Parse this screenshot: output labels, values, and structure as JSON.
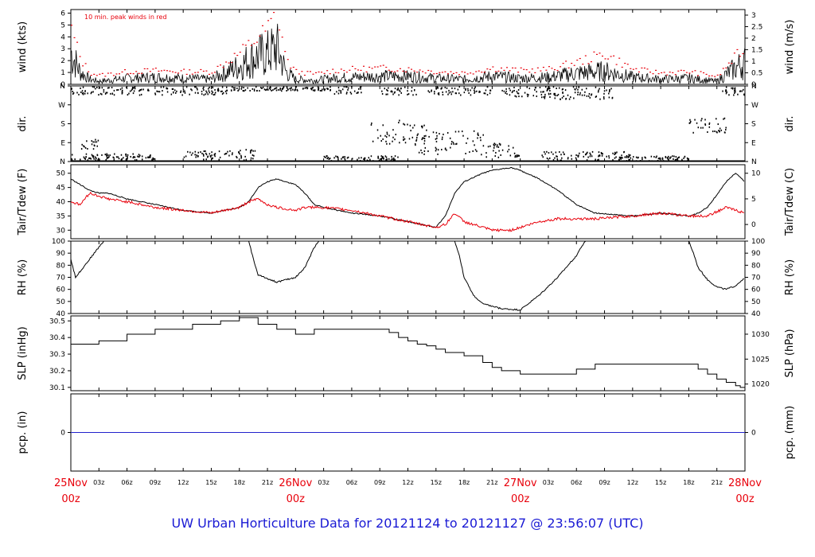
{
  "footer": {
    "prefix": "UW Urban Horticulture Data for",
    "start": "20121124",
    "to": "to",
    "end": "20121127",
    "at": "@",
    "time": "23:56:07",
    "tz": "(UTC)"
  },
  "colors": {
    "black": "#000000",
    "red": "#e8000b",
    "blue": "#2222cc"
  },
  "chart_data": [
    {
      "id": "wind",
      "type": "line",
      "ylabel_left": "wind (kts)",
      "ylabel_right": "wind (m/s)",
      "annotation": "10 min. peak winds in red",
      "ylim": [
        0,
        6.3
      ],
      "left_ticks": [
        "0",
        "1",
        "2",
        "3",
        "4",
        "5",
        "6"
      ],
      "right_ticks": [
        "0",
        "0.5",
        "1",
        "1.5",
        "2",
        "2.5",
        "3"
      ],
      "right_tick_values": [
        0,
        0.97,
        1.94,
        2.92,
        3.89,
        4.86,
        5.83
      ],
      "x_hours": [
        0,
        1,
        2,
        3,
        6,
        9,
        12,
        15,
        18,
        19,
        20,
        21,
        22,
        23,
        24,
        26,
        28,
        30,
        33,
        36,
        39,
        42,
        45,
        48,
        51,
        54,
        57,
        60,
        63,
        66,
        69,
        70,
        72
      ],
      "series": [
        {
          "values": [
            3.2,
            1.2,
            0.5,
            0.3,
            0.6,
            0.7,
            0.6,
            0.5,
            1.8,
            2.4,
            2.8,
            3.0,
            3.6,
            1.2,
            0.5,
            0.4,
            0.6,
            0.7,
            0.8,
            0.8,
            0.6,
            0.5,
            0.8,
            0.6,
            0.7,
            1.1,
            1.3,
            0.7,
            0.5,
            0.6,
            0.3,
            1.0,
            2.2
          ]
        },
        {
          "values": [
            4.6,
            2.1,
            1.0,
            0.8,
            1.1,
            1.2,
            1.1,
            1.1,
            2.7,
            3.4,
            4.0,
            4.8,
            6.1,
            2.0,
            1.1,
            0.9,
            1.2,
            1.3,
            1.4,
            1.3,
            1.1,
            1.0,
            1.4,
            1.2,
            1.3,
            1.9,
            2.6,
            1.3,
            1.0,
            1.1,
            0.7,
            1.6,
            3.2
          ]
        }
      ]
    },
    {
      "id": "dir",
      "type": "scatter",
      "ylabel_left": "dir.",
      "ylabel_right": "dir.",
      "ylim": [
        0,
        360
      ],
      "left_ticks": [
        "N",
        "E",
        "S",
        "W",
        "N"
      ],
      "right_ticks": [
        "N",
        "E",
        "S",
        "W",
        "N"
      ],
      "tick_values": [
        0,
        90,
        180,
        270,
        360
      ],
      "clusters": [
        {
          "x": [
            0,
            5
          ],
          "y": [
            320,
            360
          ]
        },
        {
          "x": [
            0,
            3
          ],
          "y": [
            10,
            40
          ]
        },
        {
          "x": [
            1,
            3
          ],
          "y": [
            60,
            110
          ]
        },
        {
          "x": [
            2,
            9
          ],
          "y": [
            10,
            40
          ]
        },
        {
          "x": [
            5,
            17
          ],
          "y": [
            320,
            360
          ]
        },
        {
          "x": [
            12,
            20
          ],
          "y": [
            10,
            60
          ]
        },
        {
          "x": [
            17,
            27
          ],
          "y": [
            340,
            360
          ]
        },
        {
          "x": [
            27,
            31
          ],
          "y": [
            320,
            360
          ]
        },
        {
          "x": [
            27,
            35
          ],
          "y": [
            5,
            30
          ]
        },
        {
          "x": [
            33,
            37
          ],
          "y": [
            320,
            360
          ]
        },
        {
          "x": [
            32,
            38
          ],
          "y": [
            80,
            200
          ]
        },
        {
          "x": [
            37,
            44
          ],
          "y": [
            30,
            150
          ]
        },
        {
          "x": [
            38,
            45
          ],
          "y": [
            320,
            360
          ]
        },
        {
          "x": [
            44,
            48
          ],
          "y": [
            20,
            90
          ]
        },
        {
          "x": [
            46,
            52
          ],
          "y": [
            310,
            360
          ]
        },
        {
          "x": [
            50,
            60
          ],
          "y": [
            5,
            50
          ]
        },
        {
          "x": [
            50,
            58
          ],
          "y": [
            300,
            360
          ]
        },
        {
          "x": [
            58,
            66
          ],
          "y": [
            5,
            30
          ]
        },
        {
          "x": [
            66,
            70
          ],
          "y": [
            140,
            210
          ]
        },
        {
          "x": [
            69,
            72
          ],
          "y": [
            320,
            360
          ]
        }
      ]
    },
    {
      "id": "temp",
      "type": "line",
      "ylabel_left": "Tair/Tdew (F)",
      "ylabel_right": "Tair/Tdew (C)",
      "ylim": [
        27,
        53
      ],
      "left_ticks": [
        "30",
        "35",
        "40",
        "45",
        "50"
      ],
      "left_tick_values": [
        30,
        35,
        40,
        45,
        50
      ],
      "right_ticks": [
        "0",
        "5",
        "10"
      ],
      "right_tick_values": [
        32,
        41,
        50
      ],
      "x_hours": [
        0,
        1,
        2,
        3,
        4,
        6,
        9,
        12,
        15,
        18,
        19,
        20,
        21,
        22,
        24,
        25,
        26,
        27,
        30,
        33,
        36,
        39,
        40,
        41,
        42,
        44,
        45,
        47,
        48,
        50,
        52,
        54,
        56,
        60,
        63,
        66,
        67,
        68,
        70,
        71,
        72
      ],
      "series": [
        {
          "values": [
            48,
            46,
            44,
            43,
            43,
            41,
            39,
            37,
            36,
            38,
            40,
            45,
            47,
            48,
            46,
            43,
            39,
            38,
            36,
            35,
            33,
            31,
            35,
            43,
            47,
            50,
            51,
            52,
            51,
            48,
            44,
            39,
            36,
            35,
            36,
            35,
            36,
            38,
            47,
            50,
            47
          ]
        },
        {
          "values": [
            40,
            39,
            43,
            42,
            41,
            40,
            38,
            37,
            36,
            38,
            40,
            41,
            39,
            38,
            37,
            38,
            38,
            38,
            37,
            35,
            33,
            31,
            32,
            36,
            33,
            31,
            30,
            30,
            31,
            33,
            34,
            34,
            34,
            35,
            36,
            35,
            35,
            35,
            38,
            37,
            36
          ]
        }
      ]
    },
    {
      "id": "rh",
      "type": "line",
      "ylabel_left": "RH (%)",
      "ylabel_right": "RH (%)",
      "ylim": [
        40,
        100
      ],
      "left_ticks": [
        "40",
        "50",
        "60",
        "70",
        "80",
        "90",
        "100"
      ],
      "right_ticks": [
        "40",
        "50",
        "60",
        "70",
        "80",
        "90",
        "100"
      ],
      "tick_values": [
        40,
        50,
        60,
        70,
        80,
        90,
        100
      ],
      "x_hours": [
        0,
        0.5,
        1,
        2,
        3,
        3.5,
        4,
        19,
        19.5,
        20,
        22,
        24,
        25,
        26,
        26.5,
        41,
        41.5,
        42,
        43,
        44,
        46,
        48,
        50,
        52,
        54,
        54.5,
        55,
        66,
        66.5,
        67,
        68,
        69,
        70,
        71,
        72
      ],
      "series": [
        {
          "values": [
            85,
            70,
            75,
            85,
            95,
            100,
            100,
            100,
            85,
            72,
            66,
            70,
            78,
            95,
            100,
            100,
            88,
            70,
            55,
            48,
            44,
            43,
            55,
            70,
            88,
            95,
            100,
            100,
            90,
            78,
            68,
            62,
            60,
            63,
            70
          ]
        }
      ]
    },
    {
      "id": "slp",
      "type": "line",
      "ylabel_left": "SLP (inHg)",
      "ylabel_right": "SLP (hPa)",
      "ylim": [
        30.08,
        30.53
      ],
      "left_ticks": [
        "30.1",
        "30.2",
        "30.3",
        "30.4",
        "30.5"
      ],
      "left_tick_values": [
        30.1,
        30.2,
        30.3,
        30.4,
        30.5
      ],
      "right_ticks": [
        "1020",
        "1025",
        "1030"
      ],
      "right_tick_values": [
        30.12,
        30.27,
        30.42
      ],
      "x_hours": [
        0,
        2.5,
        3,
        5.5,
        6,
        9,
        13,
        16,
        18,
        20,
        22,
        24,
        26,
        30,
        34,
        35,
        36,
        37,
        38,
        39,
        40,
        42,
        44,
        45,
        46,
        48,
        50,
        54,
        56,
        58,
        66,
        67,
        68,
        69,
        70,
        71,
        71.5,
        72
      ],
      "series": [
        {
          "values": [
            30.36,
            30.36,
            30.38,
            30.38,
            30.42,
            30.45,
            30.48,
            30.5,
            30.52,
            30.48,
            30.45,
            30.42,
            30.45,
            30.45,
            30.43,
            30.4,
            30.38,
            30.36,
            30.35,
            30.33,
            30.31,
            30.29,
            30.25,
            30.22,
            30.2,
            30.18,
            30.18,
            30.21,
            30.24,
            30.24,
            30.24,
            30.21,
            30.18,
            30.15,
            30.13,
            30.11,
            30.1,
            30.11
          ]
        }
      ]
    },
    {
      "id": "pcp",
      "type": "line",
      "ylabel_left": "pcp. (in)",
      "ylabel_right": "pcp. (mm)",
      "ylim": [
        -1,
        1
      ],
      "left_ticks": [
        "0"
      ],
      "right_ticks": [
        "0"
      ],
      "tick_values": [
        0
      ],
      "x_hours": [
        0,
        72
      ],
      "series": [
        {
          "values": [
            0,
            0
          ]
        }
      ]
    }
  ],
  "xaxis": {
    "ticks": [
      {
        "h": 0,
        "label": "25Nov",
        "sub": "00z",
        "major": true
      },
      {
        "h": 3,
        "label": "03z"
      },
      {
        "h": 6,
        "label": "06z"
      },
      {
        "h": 9,
        "label": "09z"
      },
      {
        "h": 12,
        "label": "12z"
      },
      {
        "h": 15,
        "label": "15z"
      },
      {
        "h": 18,
        "label": "18z"
      },
      {
        "h": 21,
        "label": "21z"
      },
      {
        "h": 24,
        "label": "26Nov",
        "sub": "00z",
        "major": true
      },
      {
        "h": 27,
        "label": "03z"
      },
      {
        "h": 30,
        "label": "06z"
      },
      {
        "h": 33,
        "label": "09z"
      },
      {
        "h": 36,
        "label": "12z"
      },
      {
        "h": 39,
        "label": "15z"
      },
      {
        "h": 42,
        "label": "18z"
      },
      {
        "h": 45,
        "label": "21z"
      },
      {
        "h": 48,
        "label": "27Nov",
        "sub": "00z",
        "major": true
      },
      {
        "h": 51,
        "label": "03z"
      },
      {
        "h": 54,
        "label": "06z"
      },
      {
        "h": 57,
        "label": "09z"
      },
      {
        "h": 60,
        "label": "12z"
      },
      {
        "h": 63,
        "label": "15z"
      },
      {
        "h": 66,
        "label": "18z"
      },
      {
        "h": 69,
        "label": "21z"
      },
      {
        "h": 72,
        "label": "28Nov",
        "sub": "00z",
        "major": true
      }
    ]
  }
}
